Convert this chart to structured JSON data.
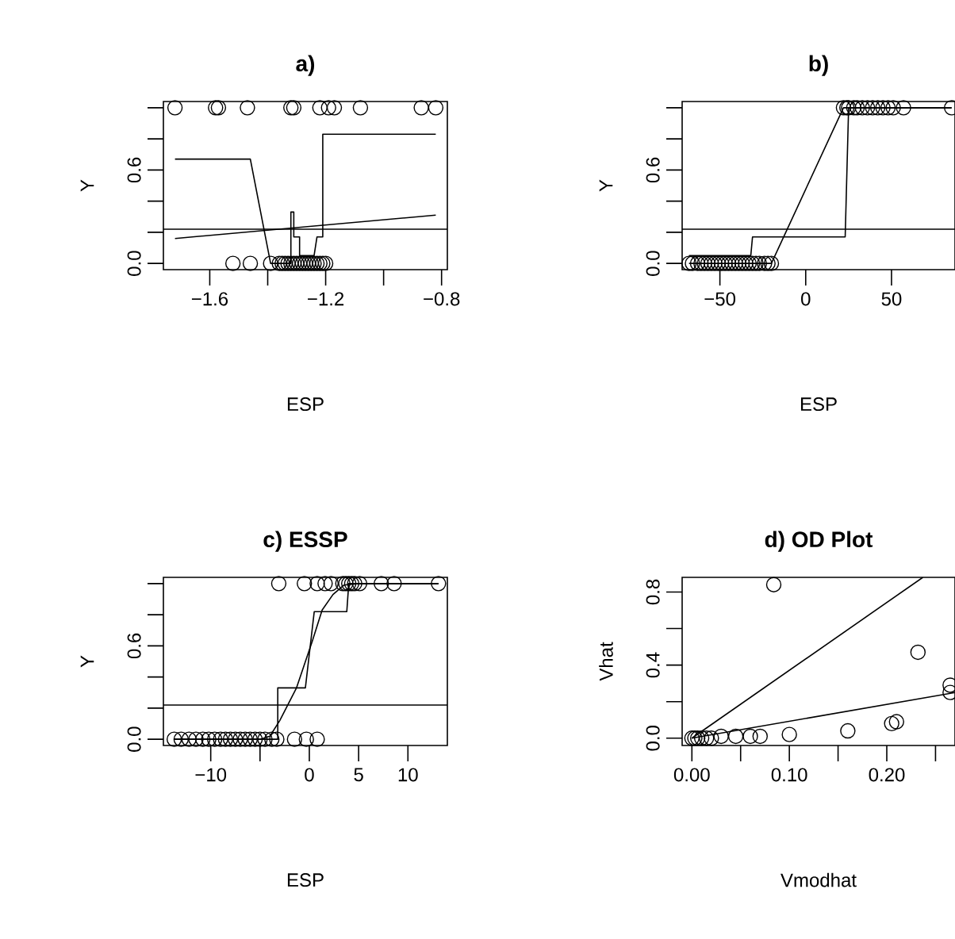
{
  "chart_data": [
    {
      "type": "scatter",
      "title": "a)",
      "xlabel": "ESP",
      "ylabel": "Y",
      "xlim": [
        -1.76,
        -0.78
      ],
      "ylim": [
        -0.04,
        1.04
      ],
      "xticks": [
        {
          "value": -1.6,
          "label": "−1.6"
        },
        {
          "value": -1.4,
          "label": null
        },
        {
          "value": -1.2,
          "label": "−1.2"
        },
        {
          "value": -1.0,
          "label": null
        },
        {
          "value": -0.8,
          "label": "−0.8"
        }
      ],
      "yticks": [
        {
          "value": 0,
          "label": "0.0"
        },
        {
          "value": 0.2,
          "label": null
        },
        {
          "value": 0.4,
          "label": null
        },
        0.6,
        {
          "value": 0.8,
          "label": null
        },
        {
          "value": 1,
          "label": null
        }
      ],
      "series": [
        {
          "marker": "circle",
          "color": "#000000",
          "x": [
            -1.72,
            -1.58,
            -1.57,
            -1.47,
            -1.32,
            -1.31,
            -1.22,
            -1.19,
            -1.17,
            -1.08,
            -0.87,
            -0.82
          ],
          "values": [
            1,
            1,
            1,
            1,
            1,
            1,
            1,
            1,
            1,
            1,
            1,
            1
          ]
        },
        {
          "marker": "circle",
          "color": "#000000",
          "x": [
            -1.52,
            -1.46,
            -1.39,
            -1.36,
            -1.35,
            -1.34,
            -1.33,
            -1.32,
            -1.31,
            -1.3,
            -1.29,
            -1.28,
            -1.27,
            -1.26,
            -1.25,
            -1.24,
            -1.23,
            -1.22,
            -1.21,
            -1.2
          ],
          "values": [
            0,
            0,
            0,
            0,
            0,
            0,
            0,
            0,
            0,
            0,
            0,
            0,
            0,
            0,
            0,
            0,
            0,
            0,
            0,
            0
          ]
        },
        {
          "type": "line",
          "marker": "none",
          "color": "#000000",
          "x": [
            -1.72,
            -1.46,
            -1.39,
            -1.32,
            -1.32,
            -1.31,
            -1.31,
            -1.29,
            -1.29,
            -1.24,
            -1.23,
            -1.21,
            -1.21,
            -0.82
          ],
          "values": [
            0.67,
            0.67,
            0,
            0,
            0.33,
            0.33,
            0.17,
            0.17,
            0.05,
            0.05,
            0.17,
            0.17,
            0.83,
            0.83
          ]
        },
        {
          "type": "line",
          "marker": "none",
          "color": "#000000",
          "x": [
            -1.72,
            -0.82
          ],
          "values": [
            0.16,
            0.31
          ]
        }
      ],
      "ref_lines": [
        {
          "axis": "y",
          "value": 0.22,
          "color": "#000000"
        }
      ]
    },
    {
      "type": "scatter",
      "title": "b)",
      "xlabel": "ESP",
      "ylabel": "Y",
      "xlim": [
        -72,
        87
      ],
      "ylim": [
        -0.04,
        1.04
      ],
      "xticks": [
        {
          "value": -50,
          "label": "−50"
        },
        0,
        50
      ],
      "yticks": [
        {
          "value": 0,
          "label": "0.0"
        },
        {
          "value": 0.2,
          "label": null
        },
        {
          "value": 0.4,
          "label": null
        },
        0.6,
        {
          "value": 0.8,
          "label": null
        },
        {
          "value": 1,
          "label": null
        }
      ],
      "series": [
        {
          "marker": "circle",
          "color": "#000000",
          "x": [
            22,
            24,
            25,
            28,
            30,
            33,
            36,
            39,
            42,
            45,
            48,
            51,
            57,
            85
          ],
          "values": [
            1,
            1,
            1,
            1,
            1,
            1,
            1,
            1,
            1,
            1,
            1,
            1,
            1,
            1
          ]
        },
        {
          "marker": "circle",
          "color": "#000000",
          "x": [
            -68,
            -66,
            -63,
            -61,
            -59,
            -57,
            -55,
            -53,
            -51,
            -49,
            -47,
            -45,
            -43,
            -41,
            -39,
            -37,
            -35,
            -33,
            -31,
            -29,
            -27,
            -24,
            -22,
            -20
          ],
          "values": [
            0,
            0,
            0,
            0,
            0,
            0,
            0,
            0,
            0,
            0,
            0,
            0,
            0,
            0,
            0,
            0,
            0,
            0,
            0,
            0,
            0,
            0,
            0,
            0
          ]
        },
        {
          "type": "line",
          "marker": "none",
          "color": "#000000",
          "x": [
            -68,
            -20,
            22,
            85
          ],
          "values": [
            0,
            0,
            1,
            1
          ]
        },
        {
          "type": "line",
          "marker": "none",
          "color": "#000000",
          "x": [
            -68,
            -32,
            -31,
            23,
            25,
            85
          ],
          "values": [
            0.05,
            0.05,
            0.17,
            0.17,
            1,
            1
          ]
        }
      ],
      "ref_lines": [
        {
          "axis": "y",
          "value": 0.22,
          "color": "#000000"
        }
      ]
    },
    {
      "type": "scatter",
      "title": "c) ESSP",
      "xlabel": "ESP",
      "ylabel": "Y",
      "xlim": [
        -14.8,
        14
      ],
      "ylim": [
        -0.04,
        1.04
      ],
      "xticks": [
        {
          "value": -10,
          "label": "−10"
        },
        {
          "value": -5,
          "label": null
        },
        0,
        5,
        10
      ],
      "yticks": [
        {
          "value": 0,
          "label": "0.0"
        },
        {
          "value": 0.2,
          "label": null
        },
        {
          "value": 0.4,
          "label": null
        },
        0.6,
        {
          "value": 0.8,
          "label": null
        },
        {
          "value": 1,
          "label": null
        }
      ],
      "series": [
        {
          "marker": "circle",
          "color": "#000000",
          "x": [
            -3.1,
            -0.5,
            0.8,
            1.6,
            2.2,
            3.4,
            3.7,
            4.0,
            4.3,
            4.6,
            5.1,
            7.3,
            8.6,
            13.1
          ],
          "values": [
            1,
            1,
            1,
            1,
            1,
            1,
            1,
            1,
            1,
            1,
            1,
            1,
            1,
            1
          ]
        },
        {
          "marker": "circle",
          "color": "#000000",
          "x": [
            -13.7,
            -13,
            -12.2,
            -11.5,
            -10.8,
            -10.2,
            -9.6,
            -9,
            -8.5,
            -8,
            -7.5,
            -7,
            -6.5,
            -6,
            -5.5,
            -5,
            -4.5,
            -3.8,
            -3.3,
            -1.5,
            -0.3,
            0.8
          ],
          "values": [
            0,
            0,
            0,
            0,
            0,
            0,
            0,
            0,
            0,
            0,
            0,
            0,
            0,
            0,
            0,
            0,
            0,
            0,
            0,
            0,
            0,
            0
          ]
        },
        {
          "type": "line",
          "marker": "none",
          "color": "#000000",
          "x": [
            -13.7,
            -3.2,
            -3.2,
            -0.4,
            0.5,
            3.8,
            4.0,
            13.1
          ],
          "values": [
            0,
            0,
            0.33,
            0.33,
            0.82,
            0.82,
            1,
            1
          ]
        },
        {
          "type": "line",
          "marker": "none",
          "color": "#000000",
          "x": [
            -13.7,
            -5,
            -4,
            -3,
            -1.3,
            0.3,
            1.3,
            2.4,
            3.5,
            5,
            13.1
          ],
          "values": [
            0,
            0,
            0.02,
            0.12,
            0.33,
            0.63,
            0.83,
            0.93,
            0.99,
            1,
            1
          ]
        }
      ],
      "ref_lines": [
        {
          "axis": "y",
          "value": 0.22,
          "color": "#000000"
        }
      ]
    },
    {
      "type": "scatter",
      "title": "d) OD Plot",
      "xlabel": "Vmodhat",
      "ylabel": "Vhat",
      "xlim": [
        -0.01,
        0.27
      ],
      "ylim": [
        -0.04,
        0.88
      ],
      "xticks": [
        {
          "value": 0,
          "label": "0.00"
        },
        {
          "value": 0.05,
          "label": null
        },
        {
          "value": 0.1,
          "label": "0.10"
        },
        {
          "value": 0.15,
          "label": null
        },
        {
          "value": 0.2,
          "label": "0.20"
        },
        {
          "value": 0.25,
          "label": null
        }
      ],
      "yticks": [
        {
          "value": 0,
          "label": "0.0"
        },
        {
          "value": 0.2,
          "label": null
        },
        0.4,
        {
          "value": 0.6,
          "label": null
        },
        0.8
      ],
      "series": [
        {
          "marker": "circle",
          "color": "#000000",
          "x": [
            0,
            0.003,
            0.006,
            0.01,
            0.015,
            0.02,
            0.03,
            0.045,
            0.06,
            0.07,
            0.1,
            0.16,
            0.205,
            0.21,
            0.232,
            0.084,
            0.265,
            0.265
          ],
          "values": [
            0,
            0,
            0,
            0,
            0,
            0,
            0.01,
            0.01,
            0.01,
            0.01,
            0.02,
            0.04,
            0.08,
            0.09,
            0.47,
            0.84,
            0.29,
            0.25
          ]
        },
        {
          "type": "line",
          "marker": "none",
          "color": "#000000",
          "x": [
            0,
            0.237
          ],
          "values": [
            0,
            0.88
          ]
        },
        {
          "type": "line",
          "marker": "none",
          "color": "#000000",
          "x": [
            0,
            0.27
          ],
          "values": [
            0,
            0.25
          ]
        }
      ]
    }
  ]
}
